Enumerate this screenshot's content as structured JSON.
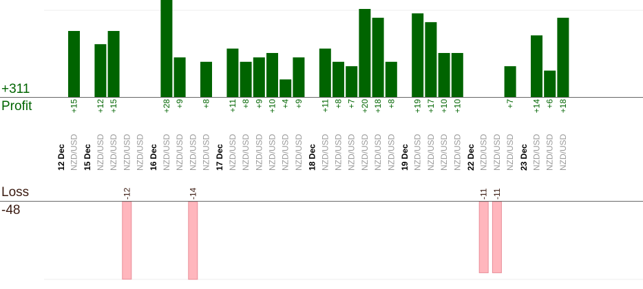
{
  "summary": {
    "profit_total": "+311",
    "profit_label": "Profit",
    "loss_label": "Loss",
    "loss_total": "-48"
  },
  "colors": {
    "profit_bar": "#006400",
    "profit_text": "#006400",
    "loss_bar": "#ffb6bd",
    "loss_bar_edge": "#e88d98",
    "loss_text": "#3a1a10",
    "instrument_text": "#999999",
    "axis": "#666666",
    "grid": "#eeeeee"
  },
  "chart_data": {
    "type": "bar",
    "instrument": "NZD/USD",
    "days": [
      {
        "date": "12 Dec",
        "trades": [
          15
        ]
      },
      {
        "date": "15 Dec",
        "trades": [
          12,
          15,
          -12,
          null
        ]
      },
      {
        "date": "16 Dec",
        "trades": [
          28,
          9,
          -14,
          8
        ]
      },
      {
        "date": "17 Dec",
        "trades": [
          11,
          8,
          9,
          10,
          4,
          9
        ]
      },
      {
        "date": "18 Dec",
        "trades": [
          11,
          8,
          7,
          20,
          18,
          8
        ]
      },
      {
        "date": "19 Dec",
        "trades": [
          19,
          17,
          10,
          10
        ]
      },
      {
        "date": "22 Dec",
        "trades": [
          -11,
          -11,
          7
        ]
      },
      {
        "date": "23 Dec",
        "trades": [
          14,
          6,
          18
        ]
      }
    ]
  }
}
